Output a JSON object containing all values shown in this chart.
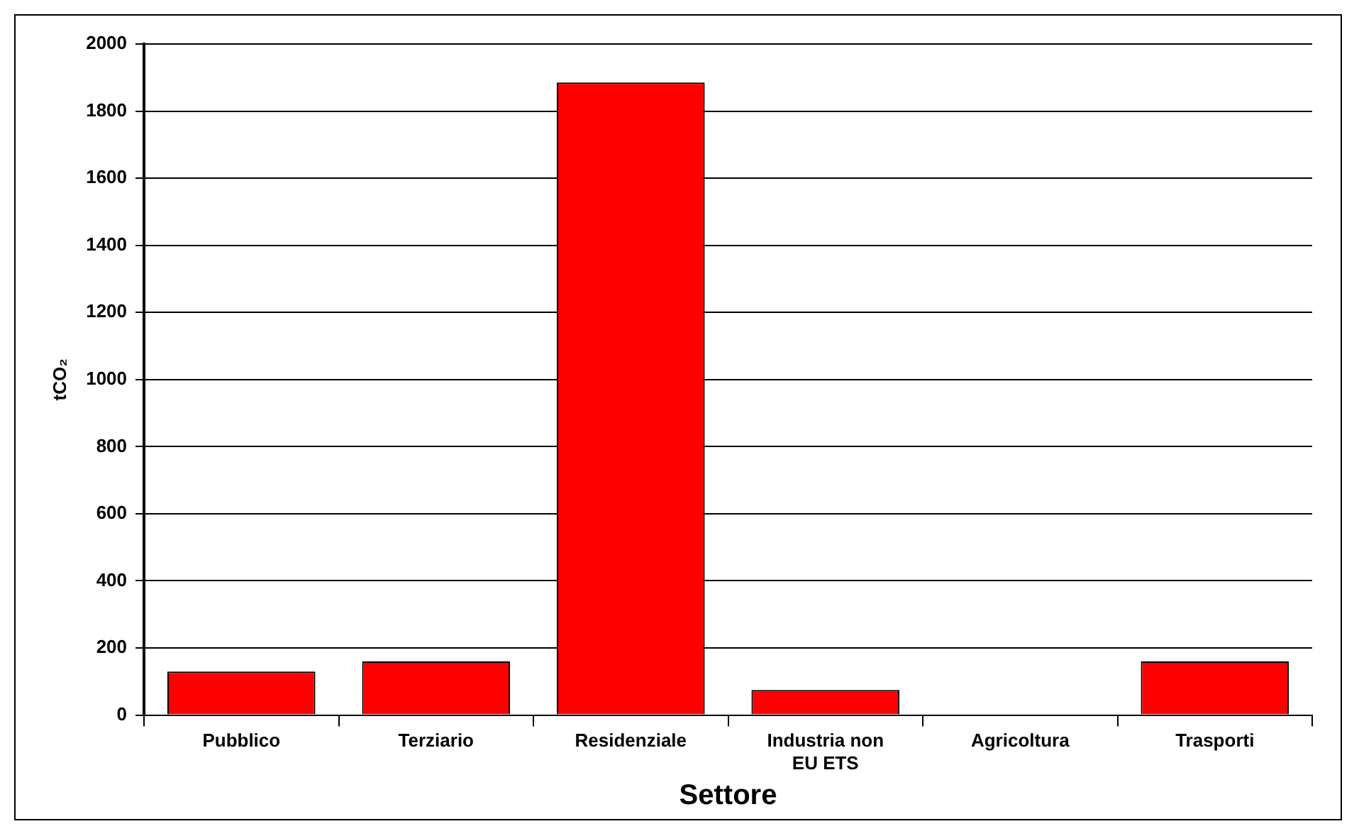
{
  "chart_data": {
    "type": "bar",
    "xlabel": "Settore",
    "ylabel": "tCO₂",
    "categories": [
      "Pubblico",
      "Terziario",
      "Residenziale",
      "Industria non EU ETS",
      "Agricoltura",
      "Trasporti"
    ],
    "values": [
      130,
      160,
      1885,
      75,
      0,
      160
    ],
    "color": "#ff0000",
    "ylim": [
      0,
      2000
    ],
    "yticks": [
      0,
      200,
      400,
      600,
      800,
      1000,
      1200,
      1400,
      1600,
      1800,
      2000
    ],
    "grid": "y",
    "legend": false
  }
}
